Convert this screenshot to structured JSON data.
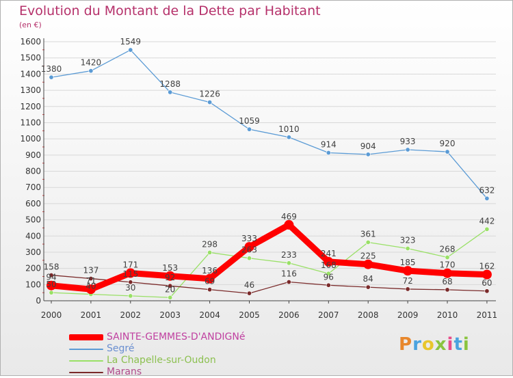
{
  "header": {
    "title": "Evolution du Montant de la Dette par Habitant",
    "unit": "(en €)"
  },
  "logo": {
    "text": "Proxiti",
    "colors": [
      "#e8872c",
      "#4aa3df",
      "#e8c62c",
      "#8ac43f",
      "#e84d8a",
      "#4aa3df",
      "#8ac43f"
    ]
  },
  "chart_data": {
    "type": "line",
    "title": "Evolution du Montant de la Dette par Habitant",
    "ylabel": "(en €)",
    "xlabel": "",
    "x": [
      "2000",
      "2001",
      "2002",
      "2003",
      "2004",
      "2005",
      "2006",
      "2007",
      "2008",
      "2009",
      "2010",
      "2011"
    ],
    "ylim": [
      0,
      1600
    ],
    "yticks": [
      0,
      100,
      200,
      300,
      400,
      500,
      600,
      700,
      800,
      900,
      1000,
      1100,
      1200,
      1300,
      1400,
      1500,
      1600
    ],
    "grid": true,
    "legend": "bottom-left",
    "series": [
      {
        "name": "SAINTE-GEMMES-D'ANDIGNé",
        "color": "#ff0000",
        "values": [
          94,
          71,
          171,
          153,
          136,
          333,
          469,
          241,
          225,
          185,
          170,
          162
        ]
      },
      {
        "name": "Segré",
        "color": "#5b9bd5",
        "values": [
          1380,
          1420,
          1549,
          1288,
          1226,
          1059,
          1010,
          914,
          904,
          933,
          920,
          632
        ]
      },
      {
        "name": "La Chapelle-sur-Oudon",
        "color": "#99e066",
        "values": [
          50,
          40,
          30,
          20,
          298,
          263,
          233,
          168,
          361,
          323,
          268,
          442
        ]
      },
      {
        "name": "Marans",
        "color": "#7a2a2a",
        "values": [
          158,
          137,
          115,
          92,
          69,
          46,
          116,
          96,
          84,
          72,
          68,
          60
        ]
      }
    ],
    "point_labels": [
      [
        "94",
        "71",
        "171",
        "153",
        "136",
        "333",
        "469",
        "241",
        "225",
        "185",
        "170",
        "162"
      ],
      [
        "1380",
        "1420",
        "1549",
        "1288",
        "1226",
        "1059",
        "1010",
        "914",
        "904",
        "933",
        "920",
        "632"
      ],
      [
        "50",
        "40",
        "30",
        "20",
        "298",
        "263",
        "233",
        "168",
        "361",
        "323",
        "268",
        "442"
      ],
      [
        "158",
        "137",
        "115",
        "92",
        "69",
        "46",
        "116",
        "96",
        "84",
        "72",
        "68",
        "60"
      ]
    ]
  }
}
